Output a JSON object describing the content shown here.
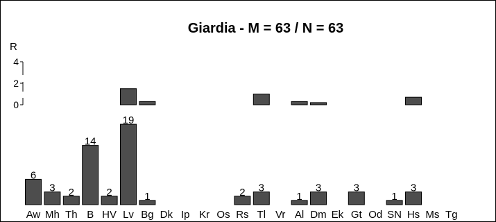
{
  "chart_data": {
    "type": "bar",
    "title": "Giardia - M = 63  /  N = 63",
    "categories": [
      "Aw",
      "Mh",
      "Th",
      "B",
      "HV",
      "Lv",
      "Bg",
      "Dk",
      "Ip",
      "Kr",
      "Os",
      "Rs",
      "Tl",
      "Vr",
      "Al",
      "Dm",
      "Ek",
      "Gt",
      "Od",
      "SN",
      "Hs",
      "Ms",
      "Tg"
    ],
    "values": [
      6,
      3,
      2,
      14,
      2,
      19,
      1,
      0,
      0,
      0,
      0,
      2,
      3,
      0,
      1,
      3,
      0,
      3,
      0,
      1,
      3,
      0,
      0
    ],
    "value_labels": [
      "6",
      "3",
      "2",
      "14",
      "2",
      "19",
      "1",
      "",
      "",
      "",
      "",
      "2",
      "3",
      "",
      "1",
      "3",
      "",
      "3",
      "",
      "1",
      "3",
      "",
      ""
    ],
    "r_axis": {
      "label": "R",
      "ticks": [
        "4",
        "2",
        "0"
      ],
      "range": [
        0,
        4
      ],
      "values": [
        0,
        0,
        0,
        0,
        0,
        1.5,
        0.3,
        0,
        0,
        0,
        0,
        0,
        1,
        0,
        0.3,
        0.2,
        0,
        0,
        0,
        0,
        0.7,
        0,
        0
      ]
    },
    "ylim": [
      0,
      19
    ]
  }
}
